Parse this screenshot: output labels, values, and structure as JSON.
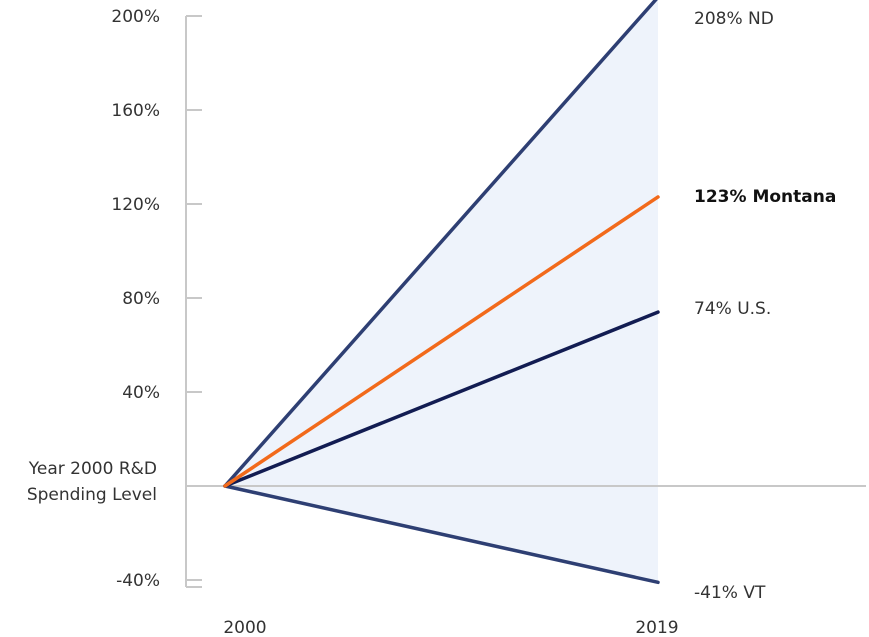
{
  "chart_data": {
    "type": "line",
    "title": "",
    "xlabel": "",
    "ylabel": "",
    "x": [
      "2000",
      "2019"
    ],
    "yticks": [
      {
        "value": 200,
        "label": "200%"
      },
      {
        "value": 160,
        "label": "160%"
      },
      {
        "value": 120,
        "label": "120%"
      },
      {
        "value": 80,
        "label": "80%"
      },
      {
        "value": 40,
        "label": "40%"
      },
      {
        "value": -40,
        "label": "-40%"
      }
    ],
    "baseline_label": [
      "Year 2000 R&D",
      "Spending Level"
    ],
    "ylim": [
      -45,
      200
    ],
    "shaded_range": {
      "upper": "ND",
      "lower": "VT"
    },
    "series": [
      {
        "id": "ND",
        "values": [
          0,
          208
        ],
        "end_label": "208% ND",
        "color": "#2e3f73",
        "bold": false
      },
      {
        "id": "Montana",
        "values": [
          0,
          123
        ],
        "end_label": "123% Montana",
        "color": "#f26a1b",
        "bold": true
      },
      {
        "id": "US",
        "values": [
          0,
          74
        ],
        "end_label": "74% U.S.",
        "color": "#121c52",
        "bold": false
      },
      {
        "id": "VT",
        "values": [
          0,
          -41
        ],
        "end_label": "-41% VT",
        "color": "#2e3f73",
        "bold": false
      }
    ],
    "colors": {
      "shade": "#eef3fb",
      "axis": "#c8c8c8"
    }
  }
}
